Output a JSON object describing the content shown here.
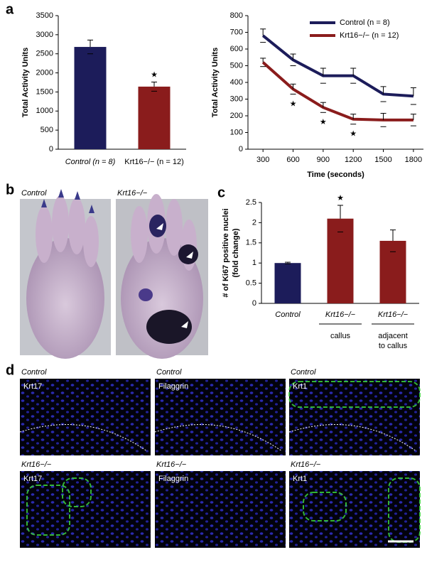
{
  "panel_labels": [
    "a",
    "b",
    "c",
    "d"
  ],
  "chart_data": [
    {
      "type": "bar",
      "y_label": "Total Activity Units",
      "categories": [
        "Control (n = 8)",
        "Krt16−/− (n = 12)"
      ],
      "values": [
        2680,
        1640
      ],
      "errors": [
        180,
        120
      ],
      "colors": [
        "#1c1c5a",
        "#8a1c1c"
      ],
      "value_annotations": [
        null,
        "★"
      ],
      "ylim": [
        0,
        3500
      ],
      "yticks": [
        0,
        500,
        1000,
        1500,
        2000,
        2500,
        3000,
        3500
      ]
    },
    {
      "type": "line",
      "y_label": "Total Activity Units",
      "x_label": "Time (seconds)",
      "x": [
        300,
        600,
        900,
        1200,
        1500,
        1800
      ],
      "series": [
        {
          "name": "Control (n = 8)",
          "color": "#1c1c5a",
          "values": [
            680,
            535,
            440,
            440,
            330,
            318
          ],
          "errors": [
            40,
            35,
            45,
            45,
            45,
            50
          ]
        },
        {
          "name": "Krt16−/− (n = 12)",
          "color": "#8a1c1c",
          "values": [
            520,
            360,
            250,
            180,
            175,
            175
          ],
          "errors": [
            25,
            30,
            30,
            30,
            40,
            35
          ],
          "annotations": [
            null,
            "★",
            "★",
            "★",
            null,
            null
          ]
        }
      ],
      "legend": "upper-right",
      "xlim": [
        150,
        1900
      ],
      "xticks": [
        300,
        600,
        900,
        1200,
        1500,
        1800
      ],
      "ylim": [
        0,
        800
      ],
      "yticks": [
        0,
        100,
        200,
        300,
        400,
        500,
        600,
        700,
        800
      ]
    },
    {
      "type": "bar",
      "y_label": [
        "# of Ki67 positive nuclei",
        "(fold change)"
      ],
      "categories": [
        "Control",
        "Krt16−/−",
        "Krt16−/−"
      ],
      "category_notes": [
        null,
        [
          "callus"
        ],
        [
          "adjacent",
          "to callus"
        ]
      ],
      "values": [
        1.0,
        2.1,
        1.55
      ],
      "errors": [
        0.02,
        0.33,
        0.27
      ],
      "colors": [
        "#1c1c5a",
        "#8a1c1c",
        "#8a1c1c"
      ],
      "value_annotations": [
        null,
        "★",
        null
      ],
      "ylim": [
        0,
        2.5
      ],
      "yticks": [
        0,
        0.5,
        1,
        1.5,
        2,
        2.5
      ]
    }
  ],
  "panel_b": {
    "images": [
      {
        "label": "Control"
      },
      {
        "label": "Krt16−/−"
      }
    ]
  },
  "panel_d": {
    "images": [
      {
        "condition": "Control",
        "stain": "Krt17"
      },
      {
        "condition": "Control",
        "stain": "Filaggrin"
      },
      {
        "condition": "Control",
        "stain": "Krt1"
      },
      {
        "condition": "Krt16−/−",
        "stain": "Krt17"
      },
      {
        "condition": "Krt16−/−",
        "stain": "Filaggrin"
      },
      {
        "condition": "Krt16−/−",
        "stain": "Krt1"
      }
    ]
  }
}
